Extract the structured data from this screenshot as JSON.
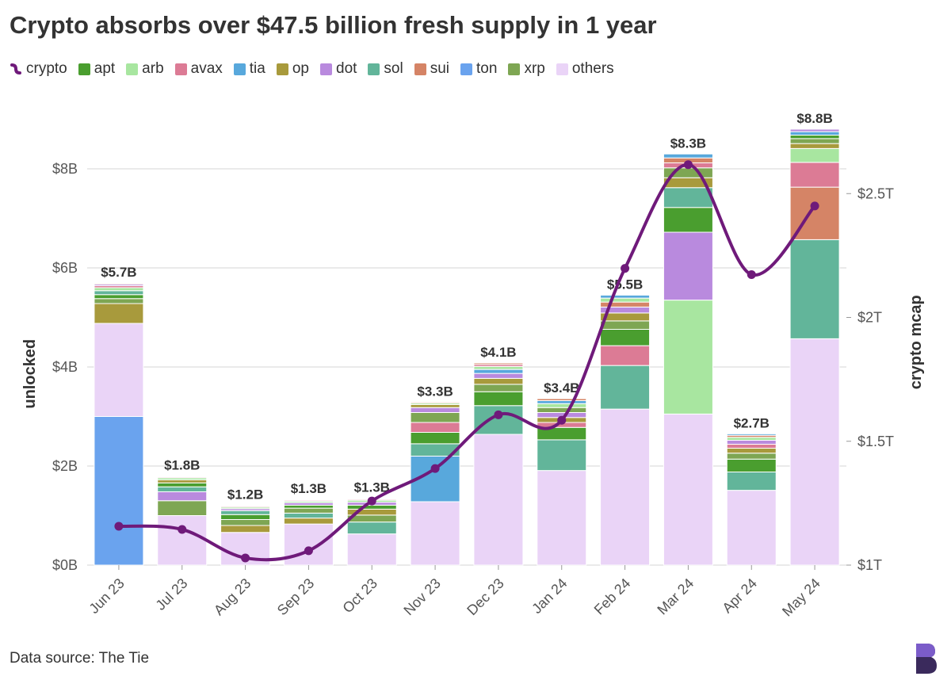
{
  "chart_data": {
    "type": "bar",
    "title": "Crypto absorbs over $47.5 billion fresh supply in 1 year",
    "categories": [
      "Jun 23",
      "Jul 23",
      "Aug 23",
      "Sep 23",
      "Oct 23",
      "Nov 23",
      "Dec 23",
      "Jan 24",
      "Feb 24",
      "Mar 24",
      "Apr 24",
      "May 24"
    ],
    "series": [
      {
        "name": "crypto",
        "color": "#6f1a7a",
        "axis": "y2",
        "values": [
          1.157,
          1.144,
          1.029,
          1.058,
          1.259,
          1.39,
          1.607,
          1.585,
          2.198,
          2.617,
          2.173,
          2.45
        ]
      },
      {
        "name": "apt",
        "color": "#4a9e2f",
        "values": [
          0.08,
          0.08,
          0.1,
          0.06,
          0.08,
          0.23,
          0.28,
          0.25,
          0.33,
          0.5,
          0.26,
          0.07
        ]
      },
      {
        "name": "arb",
        "color": "#a8e6a0",
        "values": [
          0.06,
          0.04,
          0.03,
          0.03,
          0.04,
          0.03,
          0.06,
          0.08,
          0.08,
          2.3,
          0.06,
          0.28
        ]
      },
      {
        "name": "avax",
        "color": "#dc7b95",
        "values": [
          0.04,
          0.02,
          0.02,
          0.02,
          0.02,
          0.2,
          0.04,
          0.1,
          0.4,
          0.1,
          0.08,
          0.5
        ]
      },
      {
        "name": "tia",
        "color": "#58a8dc",
        "values": [
          0.01,
          0.01,
          0.01,
          0.01,
          0.01,
          0.92,
          0.08,
          0.06,
          0.06,
          0.08,
          0.03,
          0.07
        ]
      },
      {
        "name": "op",
        "color": "#a89a3c",
        "values": [
          0.4,
          0.06,
          0.14,
          0.12,
          0.12,
          0.06,
          0.12,
          0.1,
          0.16,
          0.2,
          0.1,
          0.1
        ]
      },
      {
        "name": "dot",
        "color": "#b98ade",
        "values": [
          0.03,
          0.18,
          0.04,
          0.05,
          0.06,
          0.1,
          0.1,
          0.1,
          0.12,
          1.37,
          0.08,
          0.05
        ]
      },
      {
        "name": "sol",
        "color": "#62b59a",
        "values": [
          0.08,
          0.1,
          0.08,
          0.1,
          0.24,
          0.25,
          0.58,
          0.62,
          0.88,
          0.4,
          0.37,
          2.0
        ]
      },
      {
        "name": "sui",
        "color": "#d58466",
        "values": [
          0.02,
          0.01,
          0.01,
          0.01,
          0.01,
          0.02,
          0.03,
          0.04,
          0.1,
          0.1,
          0.04,
          1.06
        ]
      },
      {
        "name": "ton",
        "color": "#6aa3ee",
        "values": [
          3.0,
          0,
          0,
          0,
          0,
          0,
          0,
          0,
          0,
          0,
          0,
          0
        ]
      },
      {
        "name": "xrp",
        "color": "#7ea653",
        "values": [
          0.1,
          0.3,
          0.12,
          0.1,
          0.14,
          0.2,
          0.15,
          0.1,
          0.17,
          0.2,
          0.12,
          0.1
        ]
      },
      {
        "name": "others",
        "color": "#ead4f7",
        "values": [
          1.88,
          1.0,
          0.66,
          0.83,
          0.63,
          1.28,
          2.64,
          1.91,
          3.15,
          3.05,
          1.51,
          4.57
        ]
      }
    ],
    "bar_labels": [
      "$5.7B",
      "$1.8B",
      "$1.2B",
      "$1.3B",
      "$1.3B",
      "$3.3B",
      "$4.1B",
      "$3.4B",
      "$5.5B",
      "$8.3B",
      "$2.7B",
      "$8.8B"
    ],
    "ylabel": "unlocked",
    "y2label": "crypto mcap",
    "ylim": [
      0,
      9
    ],
    "yticks": [
      {
        "value": 0,
        "label": "$0B"
      },
      {
        "value": 2,
        "label": "$2B"
      },
      {
        "value": 4,
        "label": "$4B"
      },
      {
        "value": 6,
        "label": "$6B"
      },
      {
        "value": 8,
        "label": "$8B"
      }
    ],
    "y2lim": [
      1,
      2.8
    ],
    "y2ticks": [
      {
        "value": 1,
        "label": "$1T"
      },
      {
        "value": 1.5,
        "label": "$1.5T"
      },
      {
        "value": 2,
        "label": "$2T"
      },
      {
        "value": 2.5,
        "label": "$2.5T"
      }
    ],
    "grid": true,
    "source": "Data source: The Tie"
  }
}
